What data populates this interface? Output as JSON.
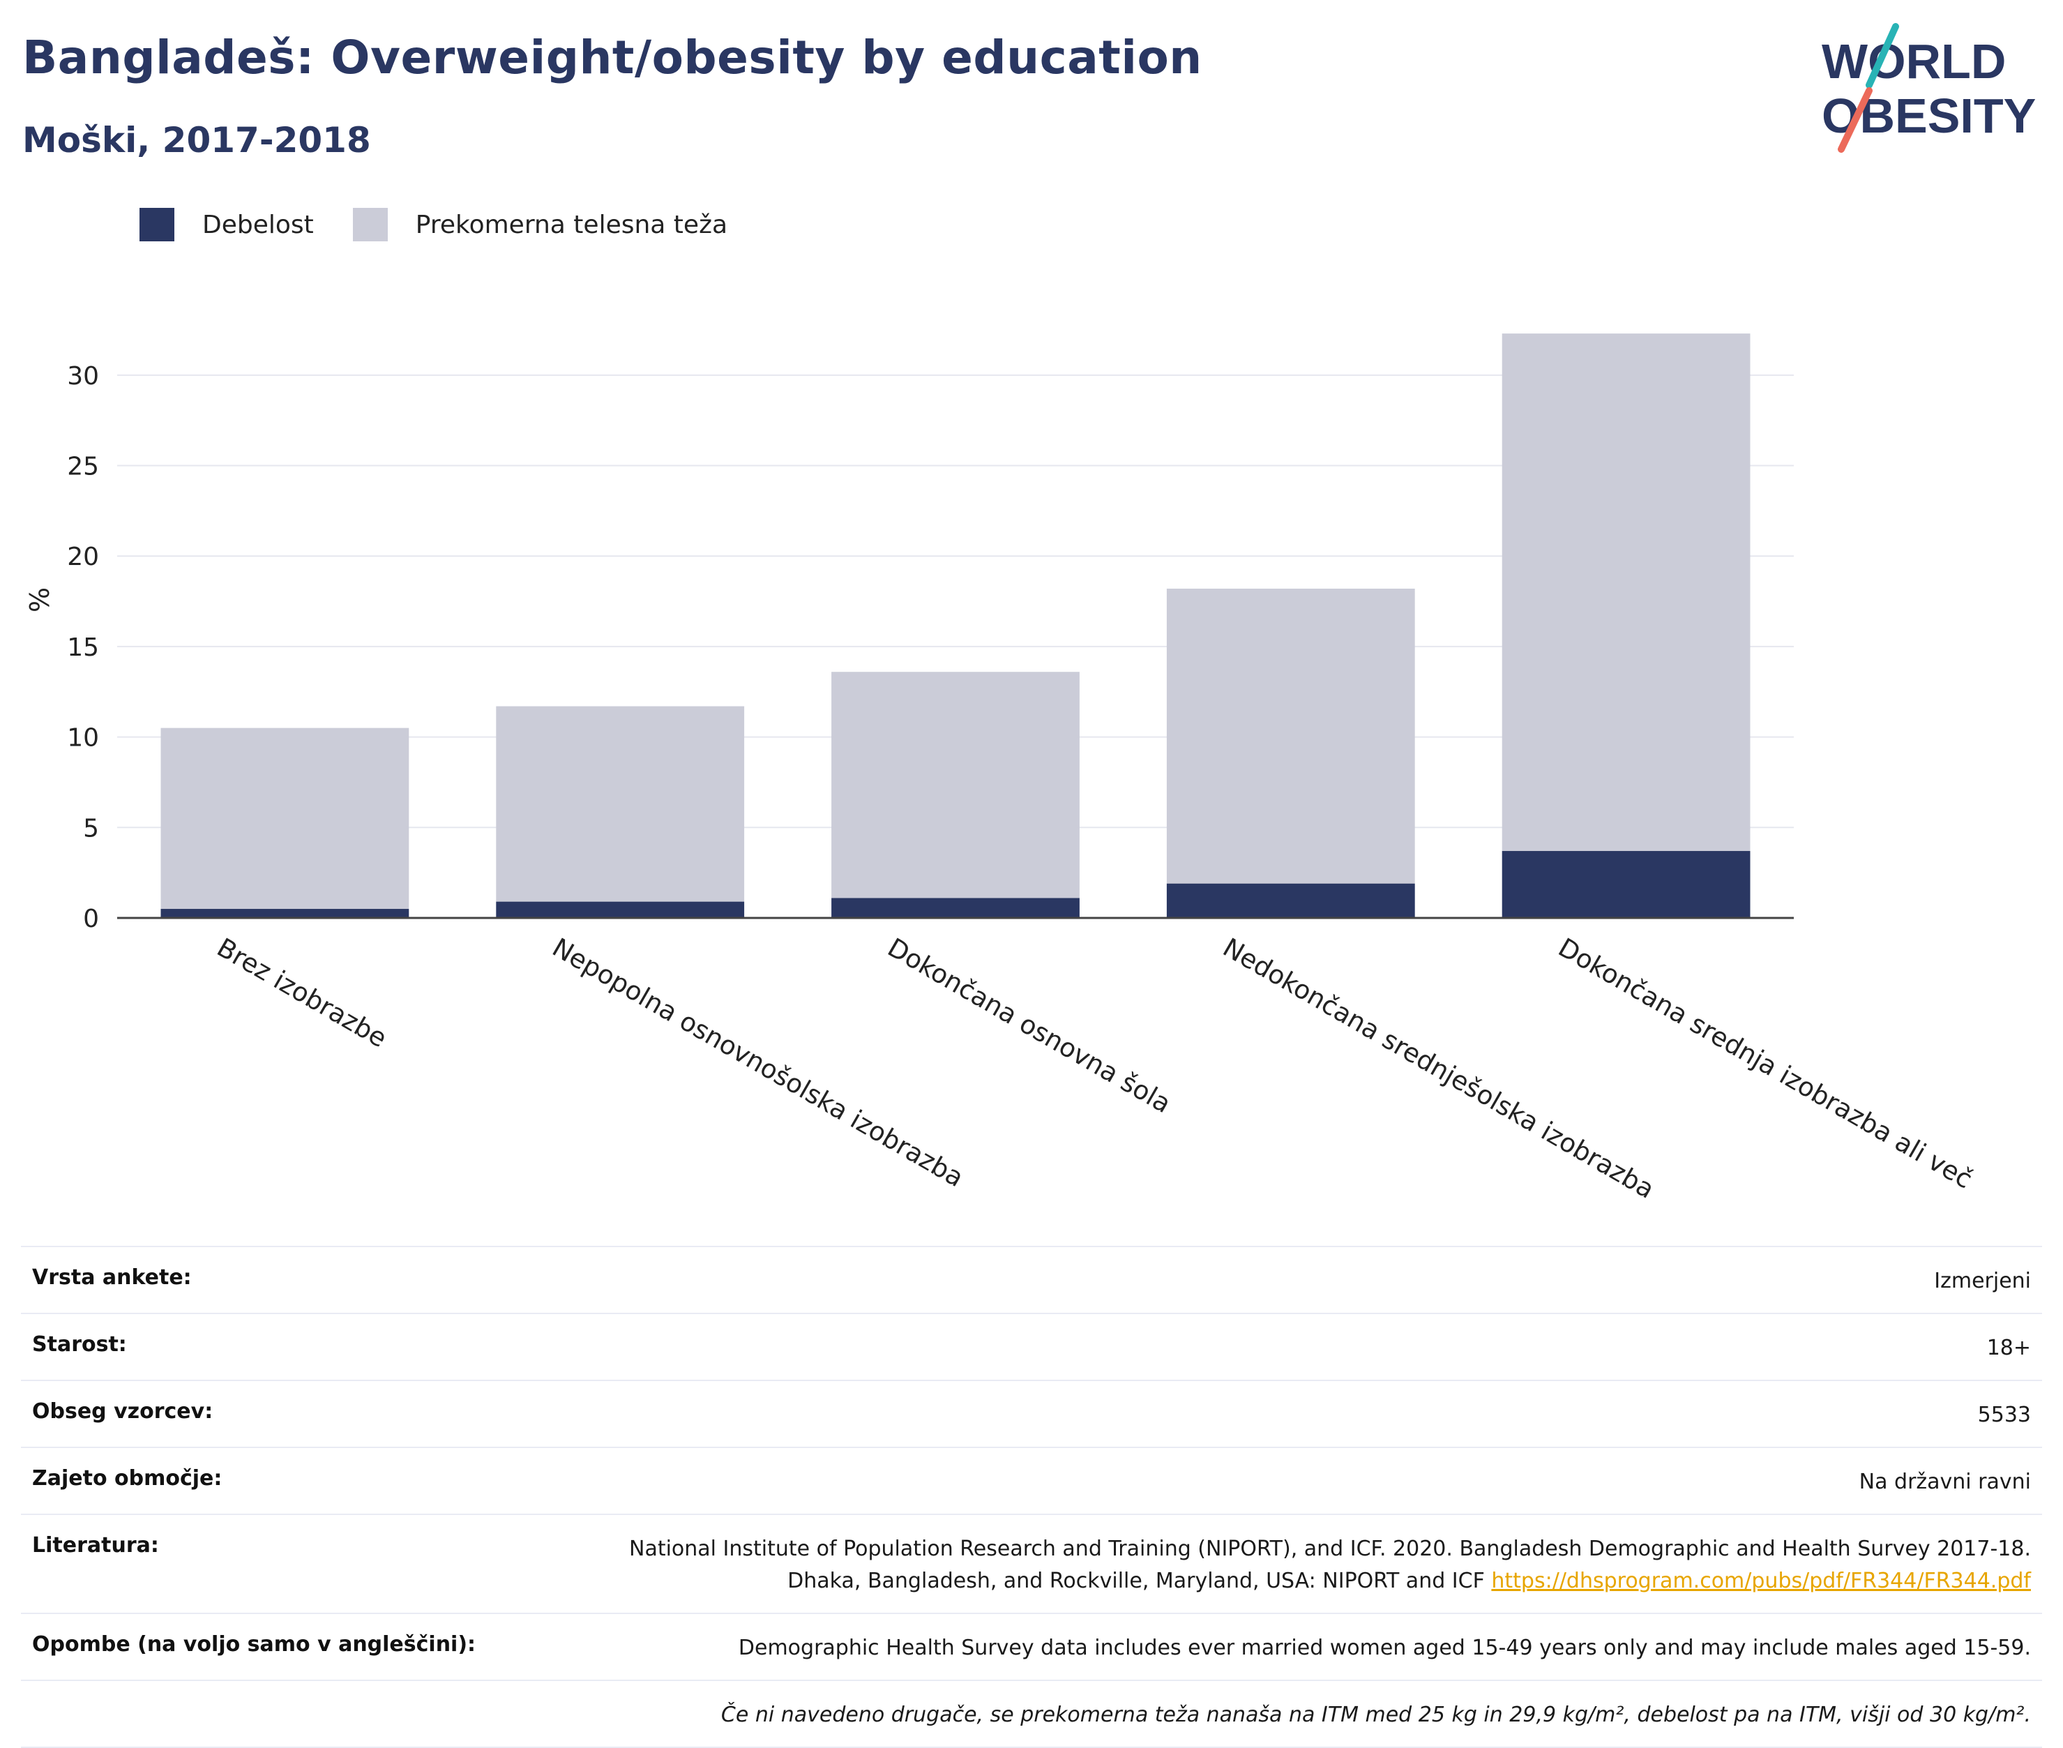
{
  "header": {
    "title": "Bangladeš: Overweight/obesity by education",
    "subtitle": "Moški, 2017-2018"
  },
  "logo": {
    "line1": "WORLD",
    "line2": "OBESITY",
    "colors": {
      "text": "#2a3762",
      "slash_top": "#28b3b5",
      "slash_bottom": "#ec6a5a"
    }
  },
  "colors": {
    "obesity": "#2a3762",
    "overweight": "#cbccd8",
    "grid": "#e6e7ef",
    "axis": "#444444"
  },
  "legend": [
    {
      "label": "Debelost",
      "color": "#2a3762"
    },
    {
      "label": "Prekomerna telesna teža",
      "color": "#cbccd8"
    }
  ],
  "chart_data": {
    "type": "bar",
    "stacked": true,
    "categories": [
      "Brez izobrazbe",
      "Nepopolna osnovnošolska izobrazba",
      "Dokončana osnovna šola",
      "Nedokončana srednješolska izobrazba",
      "Dokončana srednja izobrazba ali več"
    ],
    "series": [
      {
        "name": "Debelost",
        "values": [
          0.5,
          0.9,
          1.1,
          1.9,
          3.7
        ]
      },
      {
        "name": "Prekomerna telesna teža",
        "values": [
          10.0,
          10.8,
          12.5,
          16.3,
          28.6
        ]
      }
    ],
    "ylabel": "%",
    "xlabel": "",
    "ylim": [
      0,
      33
    ],
    "yticks": [
      0,
      5,
      10,
      15,
      20,
      25,
      30
    ],
    "grid": true,
    "legend_position": "top-left"
  },
  "meta": {
    "rows": [
      {
        "label": "Vrsta ankete:",
        "value": "Izmerjeni"
      },
      {
        "label": "Starost:",
        "value": "18+"
      },
      {
        "label": "Obseg vzorcev:",
        "value": "5533"
      },
      {
        "label": "Zajeto območje:",
        "value": "Na državni ravni"
      }
    ],
    "literature": {
      "label": "Literatura:",
      "line1": "National Institute of Population Research and Training (NIPORT), and ICF. 2020. Bangladesh Demographic and Health Survey 2017-18.",
      "line2": "Dhaka, Bangladesh, and Rockville, Maryland, USA: NIPORT and ICF",
      "link": "https://dhsprogram.com/pubs/pdf/FR344/FR344.pdf"
    },
    "notes": {
      "label": "Opombe (na voljo samo v angleščini):",
      "value": "Demographic Health Survey data includes ever married women aged 15-49 years only and may include males aged 15-59."
    },
    "footnote": "Če ni navedeno drugače, se prekomerna teža nanaša na ITM med 25 kg in 29,9 kg/m², debelost pa na ITM, višji od 30 kg/m²."
  }
}
